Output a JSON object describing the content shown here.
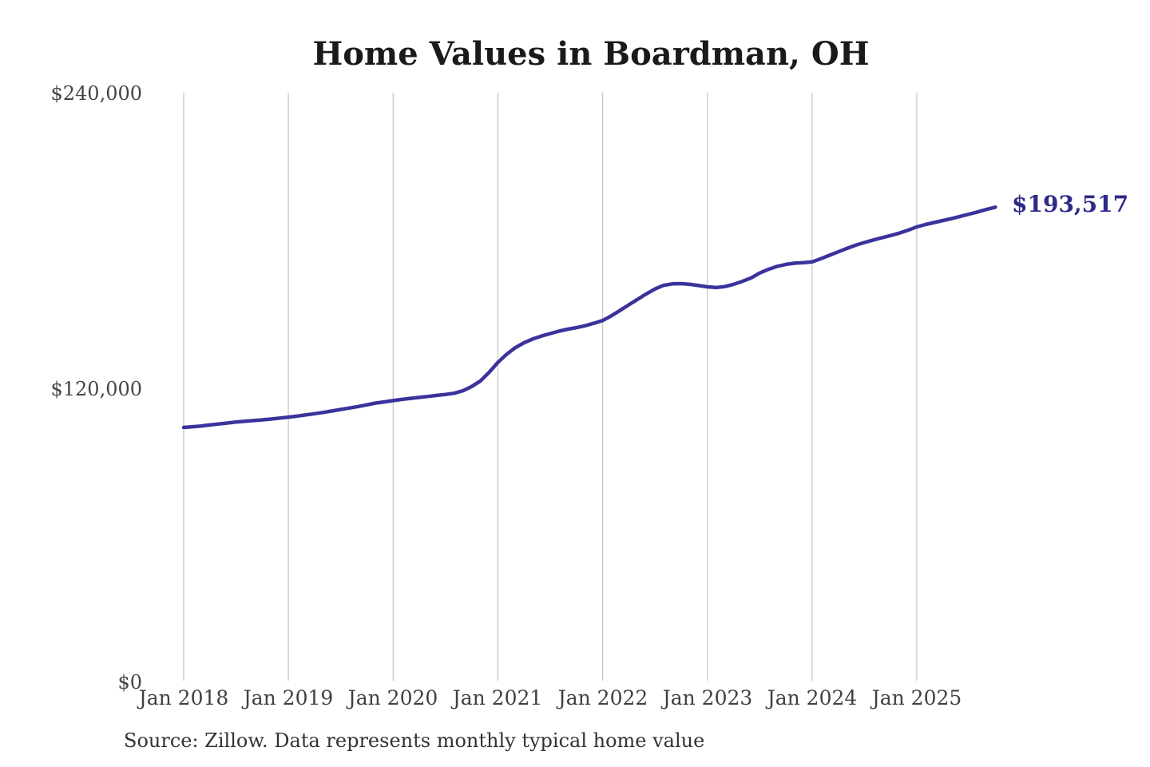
{
  "header": {
    "title": "Home Values in Boardman, OH"
  },
  "footer": {
    "source_note": "Source: Zillow. Data represents monthly typical home value"
  },
  "colors": {
    "background": "#ffffff",
    "line": "#3a339c",
    "end_label": "#2d2a87",
    "grid": "#c8c8c8",
    "title_text": "#1a1a1a",
    "axis_text": "#454545",
    "source_text": "#333333"
  },
  "chart_data": {
    "type": "line",
    "title": "Home Values in Boardman, OH",
    "xlabel": "",
    "ylabel": "",
    "x_tick_labels": [
      "Jan 2018",
      "Jan 2019",
      "Jan 2020",
      "Jan 2021",
      "Jan 2022",
      "Jan 2023",
      "Jan 2024",
      "Jan 2025"
    ],
    "y_tick_labels": [
      "$240,000",
      "$120,000",
      "$0"
    ],
    "ylim": [
      0,
      240000
    ],
    "grid": "vertical-only",
    "legend": "none",
    "frequency": "monthly",
    "x_range": [
      "Jan 2018",
      "Oct 2025"
    ],
    "end_label": "$193,517",
    "latest_value": 193517,
    "series": [
      {
        "name": "Typical home value (USD)",
        "start": "2018-01",
        "values": [
          104100,
          104400,
          104700,
          105100,
          105500,
          105900,
          106300,
          106600,
          106900,
          107200,
          107500,
          107900,
          108300,
          108700,
          109200,
          109700,
          110200,
          110800,
          111400,
          112000,
          112600,
          113300,
          114000,
          114500,
          115000,
          115500,
          115900,
          116300,
          116700,
          117100,
          117500,
          118000,
          119000,
          120700,
          123000,
          126500,
          130500,
          133800,
          136500,
          138500,
          140000,
          141200,
          142200,
          143200,
          144000,
          144600,
          145400,
          146400,
          147500,
          149400,
          151600,
          153900,
          156100,
          158300,
          160300,
          161800,
          162400,
          162500,
          162200,
          161700,
          161200,
          160900,
          161300,
          162200,
          163400,
          164800,
          166800,
          168300,
          169500,
          170300,
          170800,
          171000,
          171300,
          172600,
          174000,
          175400,
          176800,
          178100,
          179200,
          180200,
          181100,
          182000,
          183000,
          184200,
          185500,
          186500,
          187300,
          188100,
          188900,
          189800,
          190700,
          191600,
          192600,
          193517
        ]
      }
    ]
  }
}
